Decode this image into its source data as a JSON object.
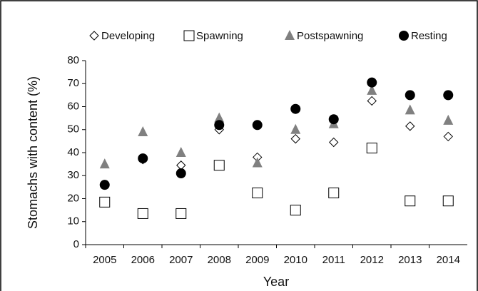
{
  "chart_data": {
    "type": "scatter",
    "x_label": "Year",
    "y_label": "Stomachs with content (%)",
    "categories": [
      "2005",
      "2006",
      "2007",
      "2008",
      "2009",
      "2010",
      "2011",
      "2012",
      "2013",
      "2014"
    ],
    "series": [
      {
        "name": "Developing",
        "marker": "diamond",
        "color": "#ffffff",
        "values": [
          26,
          37,
          34.5,
          50,
          38,
          46,
          44.5,
          62.5,
          51.5,
          47
        ]
      },
      {
        "name": "Spawning",
        "marker": "square",
        "color": "#ffffff",
        "values": [
          18.5,
          13.5,
          13.5,
          34.5,
          22.5,
          15,
          22.5,
          42,
          19,
          19
        ]
      },
      {
        "name": "Postspawning",
        "marker": "triangle",
        "color": "#808080",
        "values": [
          35,
          49,
          40,
          55,
          35.5,
          50,
          52.5,
          67,
          58.5,
          54
        ]
      },
      {
        "name": "Resting",
        "marker": "circle",
        "color": "#000000",
        "values": [
          26,
          37.5,
          31,
          52,
          52,
          59,
          54.5,
          70.5,
          65,
          65
        ]
      }
    ],
    "ylim": [
      0,
      80
    ],
    "yticks": [
      0,
      10,
      20,
      30,
      40,
      50,
      60,
      70,
      80
    ],
    "legend": "top"
  }
}
